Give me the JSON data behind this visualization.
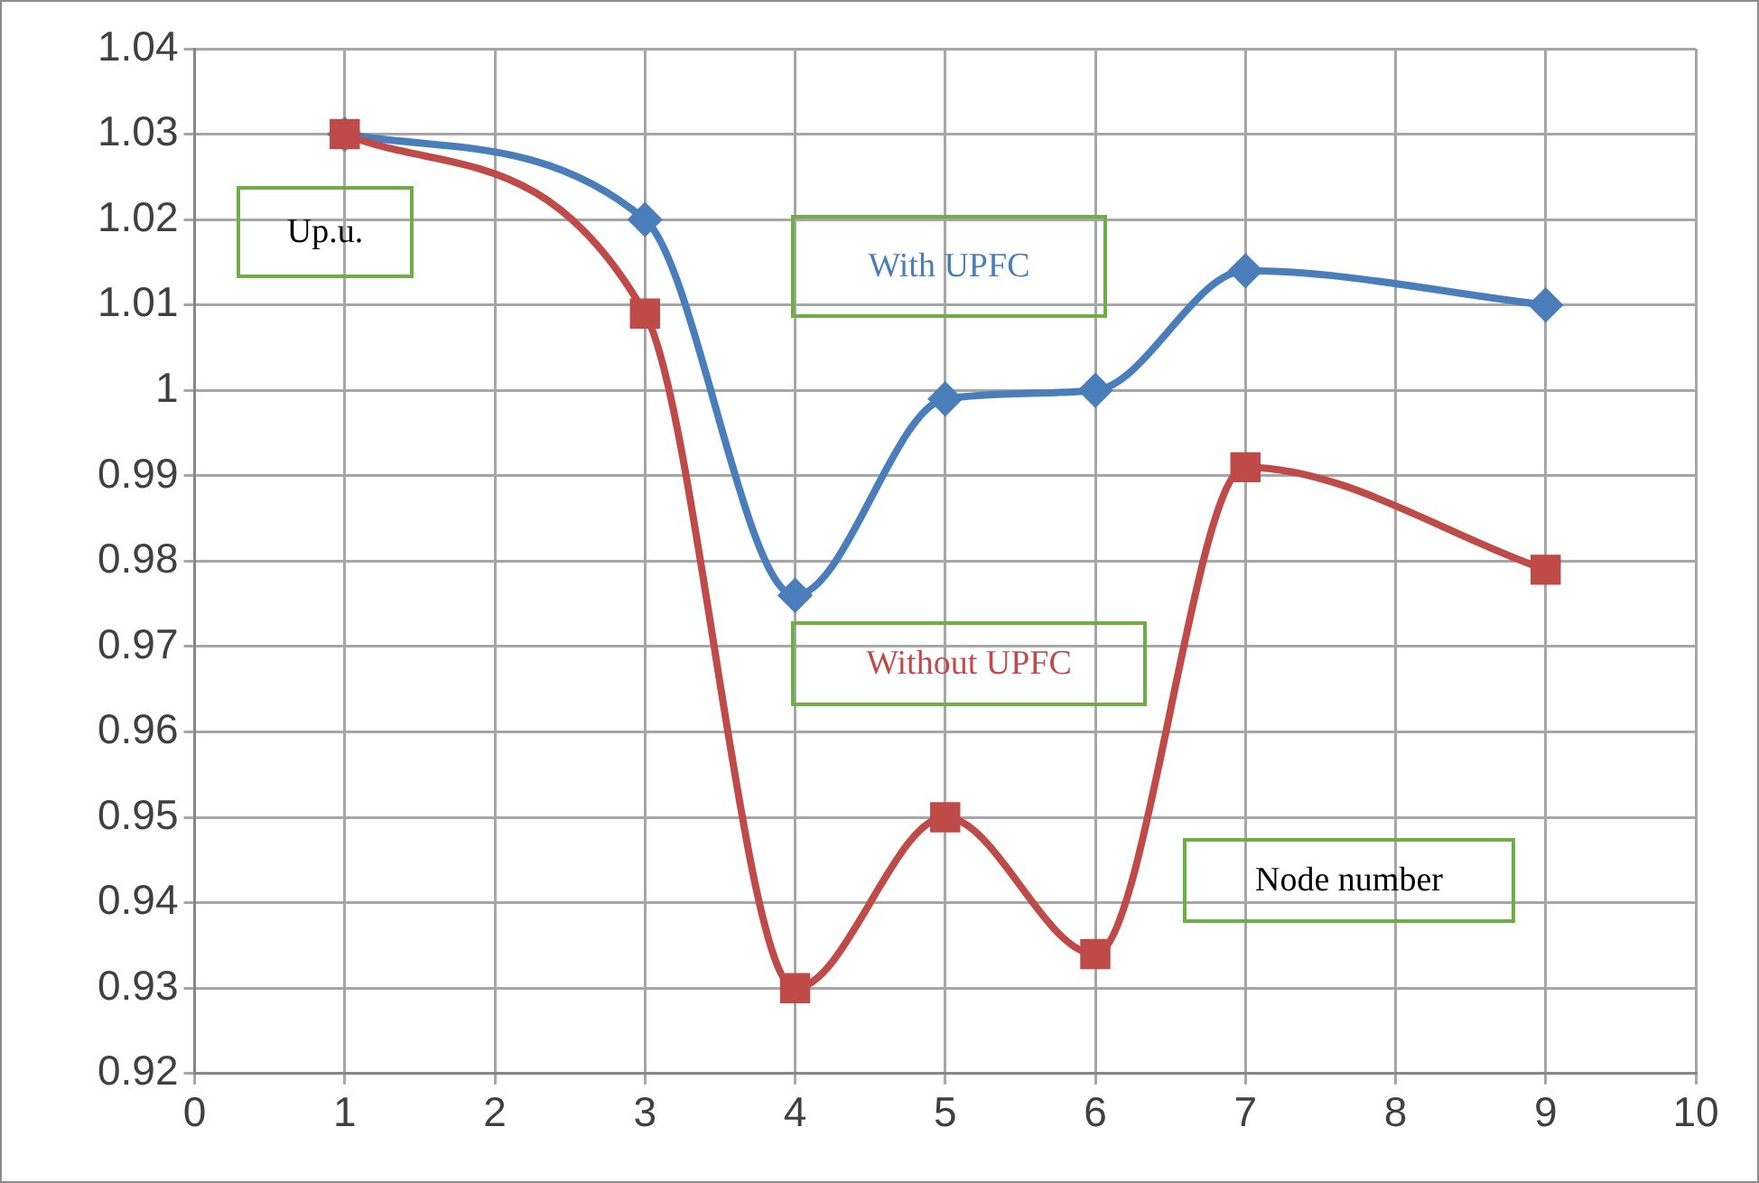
{
  "chart_data": {
    "type": "line",
    "xlabel": "Node number",
    "ylabel": "Up.u.",
    "xlim": [
      0,
      10
    ],
    "xticks": [
      0,
      1,
      2,
      3,
      4,
      5,
      6,
      7,
      8,
      9,
      10
    ],
    "ylim": [
      0.92,
      1.04
    ],
    "yticks": [
      0.92,
      0.93,
      0.94,
      0.95,
      0.96,
      0.97,
      0.98,
      0.99,
      1,
      1.01,
      1.02,
      1.03,
      1.04
    ],
    "grid": true,
    "legend": false,
    "series": [
      {
        "name": "With UPFC",
        "color": "#4a7ebb",
        "marker": "diamond",
        "x": [
          1,
          3,
          4,
          5,
          6,
          7,
          9
        ],
        "values": [
          1.03,
          1.02,
          0.976,
          0.999,
          1.0,
          1.014,
          1.01
        ]
      },
      {
        "name": "Without UPFC",
        "color": "#be4b48",
        "marker": "square",
        "x": [
          1,
          3,
          4,
          5,
          6,
          7,
          9
        ],
        "values": [
          1.03,
          1.009,
          0.93,
          0.95,
          0.934,
          0.991,
          0.979
        ]
      }
    ]
  }
}
